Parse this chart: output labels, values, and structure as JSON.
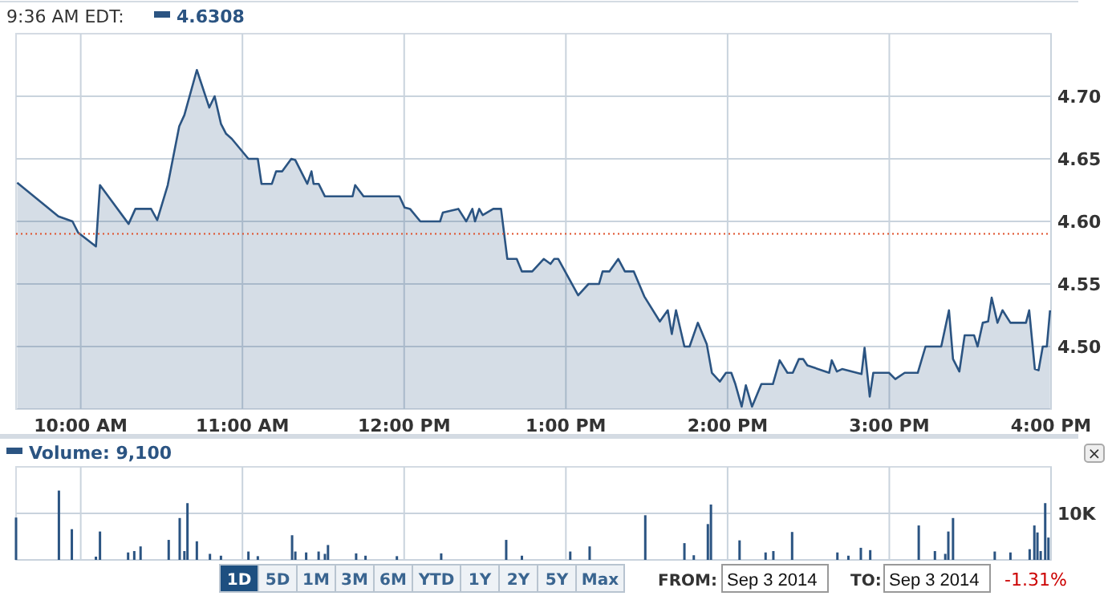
{
  "chart_data": [
    {
      "type": "area",
      "annotations": [
        "9:36 AM EDT:",
        "4.6308"
      ],
      "x": [
        9.607,
        9.862,
        9.949,
        9.984,
        10.094,
        10.119,
        10.296,
        10.338,
        10.435,
        10.473,
        10.538,
        10.609,
        10.641,
        10.718,
        10.795,
        10.828,
        10.867,
        10.899,
        10.934,
        11.037,
        11.095,
        11.118,
        11.182,
        11.208,
        11.246,
        11.302,
        11.327,
        11.401,
        11.427,
        11.44,
        11.471,
        11.51,
        11.681,
        11.697,
        11.749,
        11.971,
        12.003,
        12.036,
        12.1,
        12.222,
        12.239,
        12.335,
        12.384,
        12.422,
        12.438,
        12.464,
        12.486,
        12.551,
        12.599,
        12.638,
        12.696,
        12.728,
        12.792,
        12.863,
        12.905,
        12.928,
        12.953,
        13.076,
        13.14,
        13.205,
        13.227,
        13.269,
        13.324,
        13.365,
        13.42,
        13.485,
        13.581,
        13.63,
        13.655,
        13.681,
        13.733,
        13.765,
        13.816,
        13.871,
        13.903,
        13.952,
        13.99,
        14.023,
        14.048,
        14.087,
        14.113,
        14.151,
        14.209,
        14.28,
        14.322,
        14.37,
        14.403,
        14.441,
        14.467,
        14.493,
        14.628,
        14.644,
        14.676,
        14.708,
        14.828,
        14.847,
        14.879,
        14.901,
        14.998,
        15.037,
        15.095,
        15.176,
        15.224,
        15.321,
        15.369,
        15.394,
        15.433,
        15.466,
        15.524,
        15.546,
        15.578,
        15.611,
        15.633,
        15.669,
        15.7,
        15.749,
        15.845,
        15.865,
        15.9,
        15.923,
        15.949,
        15.974,
        15.994
      ],
      "series": [
        {
          "color": "#2b5482",
          "values": [
            4.631,
            4.604,
            4.6,
            4.591,
            4.58,
            4.629,
            4.598,
            4.61,
            4.61,
            4.601,
            4.629,
            4.676,
            4.685,
            4.721,
            4.691,
            4.7,
            4.678,
            4.67,
            4.666,
            4.65,
            4.65,
            4.63,
            4.63,
            4.64,
            4.64,
            4.65,
            4.649,
            4.63,
            4.64,
            4.63,
            4.63,
            4.62,
            4.62,
            4.629,
            4.62,
            4.62,
            4.611,
            4.61,
            4.6,
            4.6,
            4.607,
            4.61,
            4.6,
            4.61,
            4.6,
            4.61,
            4.605,
            4.61,
            4.61,
            4.57,
            4.57,
            4.56,
            4.56,
            4.57,
            4.566,
            4.57,
            4.57,
            4.541,
            4.55,
            4.55,
            4.56,
            4.56,
            4.57,
            4.56,
            4.56,
            4.54,
            4.52,
            4.529,
            4.51,
            4.529,
            4.5,
            4.5,
            4.519,
            4.502,
            4.479,
            4.472,
            4.479,
            4.479,
            4.47,
            4.452,
            4.469,
            4.452,
            4.47,
            4.47,
            4.489,
            4.479,
            4.479,
            4.49,
            4.49,
            4.485,
            4.479,
            4.489,
            4.48,
            4.482,
            4.478,
            4.499,
            4.46,
            4.479,
            4.479,
            4.474,
            4.479,
            4.479,
            4.5,
            4.5,
            4.529,
            4.49,
            4.48,
            4.509,
            4.509,
            4.5,
            4.519,
            4.52,
            4.539,
            4.519,
            4.529,
            4.519,
            4.519,
            4.529,
            4.482,
            4.481,
            4.5,
            4.5,
            4.529
          ]
        }
      ],
      "xlim": [
        9.6,
        16
      ],
      "xticks": [
        {
          "value": 10,
          "label": "10:00 AM"
        },
        {
          "value": 11,
          "label": "11:00 AM"
        },
        {
          "value": 12,
          "label": "12:00 PM"
        },
        {
          "value": 13,
          "label": "1:00 PM"
        },
        {
          "value": 14,
          "label": "2:00 PM"
        },
        {
          "value": 15,
          "label": "3:00 PM"
        },
        {
          "value": 16,
          "label": "4:00 PM"
        }
      ],
      "ylim": [
        4.45,
        4.75
      ],
      "yticks": [
        {
          "value": 4.5,
          "label": "4.50"
        },
        {
          "value": 4.55,
          "label": "4.55"
        },
        {
          "value": 4.6,
          "label": "4.60"
        },
        {
          "value": 4.65,
          "label": "4.65"
        },
        {
          "value": 4.7,
          "label": "4.70"
        }
      ],
      "ref_lines": [
        {
          "axis": "y",
          "value": 4.59,
          "color": "#e0502a",
          "line_style": "dotted"
        }
      ],
      "grid": true
    },
    {
      "type": "bar",
      "annotations": [
        "Volume: 9,100",
        "1D",
        "5D",
        "1M",
        "3M",
        "6M",
        "YTD",
        "1Y",
        "2Y",
        "5Y",
        "Max",
        "FROM:",
        "Sep 3 2014",
        "TO:",
        "Sep 3 2014",
        "-1.31%",
        "×"
      ],
      "x": [
        9.6,
        9.865,
        9.945,
        10.094,
        10.119,
        10.293,
        10.331,
        10.37,
        10.544,
        10.612,
        10.641,
        10.66,
        10.718,
        10.799,
        10.867,
        11.037,
        11.095,
        11.307,
        11.327,
        11.394,
        11.471,
        11.51,
        11.529,
        11.703,
        11.761,
        11.955,
        12.229,
        12.631,
        12.728,
        13.027,
        13.147,
        13.491,
        13.733,
        13.791,
        13.878,
        13.897,
        14.074,
        14.235,
        14.283,
        14.399,
        14.679,
        14.747,
        14.824,
        14.882,
        15.182,
        15.282,
        15.346,
        15.365,
        15.394,
        15.652,
        15.749,
        15.868,
        15.897,
        15.916,
        15.936,
        15.964,
        15.984
      ],
      "series": [
        {
          "color": "#2b5482",
          "values": [
            9100,
            14900,
            6600,
            700,
            6100,
            1600,
            1900,
            2900,
            4300,
            9000,
            1900,
            12200,
            4000,
            1300,
            900,
            1800,
            800,
            5300,
            1800,
            1600,
            1800,
            1300,
            3200,
            1400,
            900,
            800,
            1400,
            4300,
            900,
            1800,
            2900,
            9600,
            3600,
            1000,
            7700,
            11900,
            4200,
            1600,
            1900,
            6000,
            1600,
            900,
            2600,
            2100,
            7400,
            1900,
            1300,
            6100,
            9000,
            1800,
            1600,
            2300,
            7400,
            5900,
            1900,
            12200,
            4800
          ]
        }
      ],
      "xlim": [
        9.6,
        16
      ],
      "xticks": [
        {
          "value": 10,
          "label": null
        },
        {
          "value": 11,
          "label": null
        },
        {
          "value": 12,
          "label": null
        },
        {
          "value": 13,
          "label": null
        },
        {
          "value": 14,
          "label": null
        },
        {
          "value": 15,
          "label": null
        },
        {
          "value": 16,
          "label": null
        }
      ],
      "ylim": [
        0,
        20000
      ],
      "yticks": [
        {
          "value": 0,
          "label": null
        },
        {
          "value": 10000,
          "label": "10K"
        }
      ],
      "tick_labels": "y",
      "grid": true
    }
  ]
}
